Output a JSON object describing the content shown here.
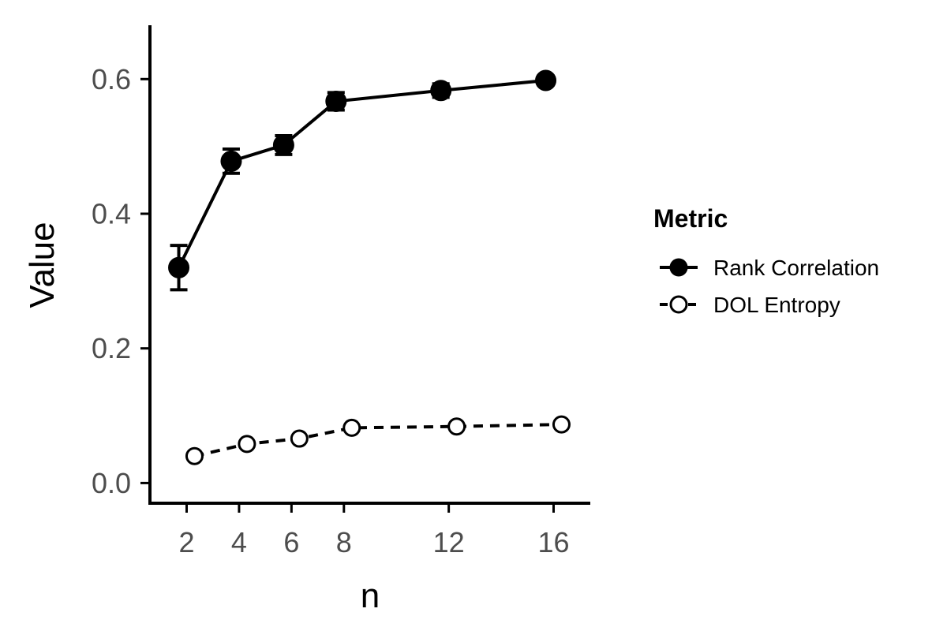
{
  "chart_data": {
    "type": "line",
    "xlabel": "n",
    "ylabel": "Value",
    "x_ticks": [
      2,
      4,
      6,
      8,
      12,
      16
    ],
    "y_ticks": [
      0.0,
      0.2,
      0.4,
      0.6
    ],
    "y_tick_labels": [
      "0.0",
      "0.2",
      "0.4",
      "0.6"
    ],
    "xlim": [
      0.6,
      17.4
    ],
    "ylim": [
      -0.03,
      0.68
    ],
    "grid": false,
    "legend": {
      "title": "Metric",
      "position": "right",
      "entries": [
        "Rank Correlation",
        "DOL Entropy"
      ]
    },
    "series": [
      {
        "name": "Rank Correlation",
        "style": "solid",
        "marker": "filled-circle",
        "x": [
          2,
          4,
          6,
          8,
          12,
          16
        ],
        "y": [
          0.32,
          0.478,
          0.502,
          0.567,
          0.583,
          0.598
        ],
        "err": [
          0.033,
          0.018,
          0.014,
          0.013,
          0.01,
          0.007
        ]
      },
      {
        "name": "DOL Entropy",
        "style": "dashed",
        "marker": "open-circle",
        "x": [
          2,
          4,
          6,
          8,
          12,
          16
        ],
        "y": [
          0.04,
          0.058,
          0.066,
          0.082,
          0.084,
          0.087
        ]
      }
    ],
    "colors": {
      "line": "#000000",
      "axis": "#000000",
      "tick_text": "#4d4d4d"
    }
  }
}
